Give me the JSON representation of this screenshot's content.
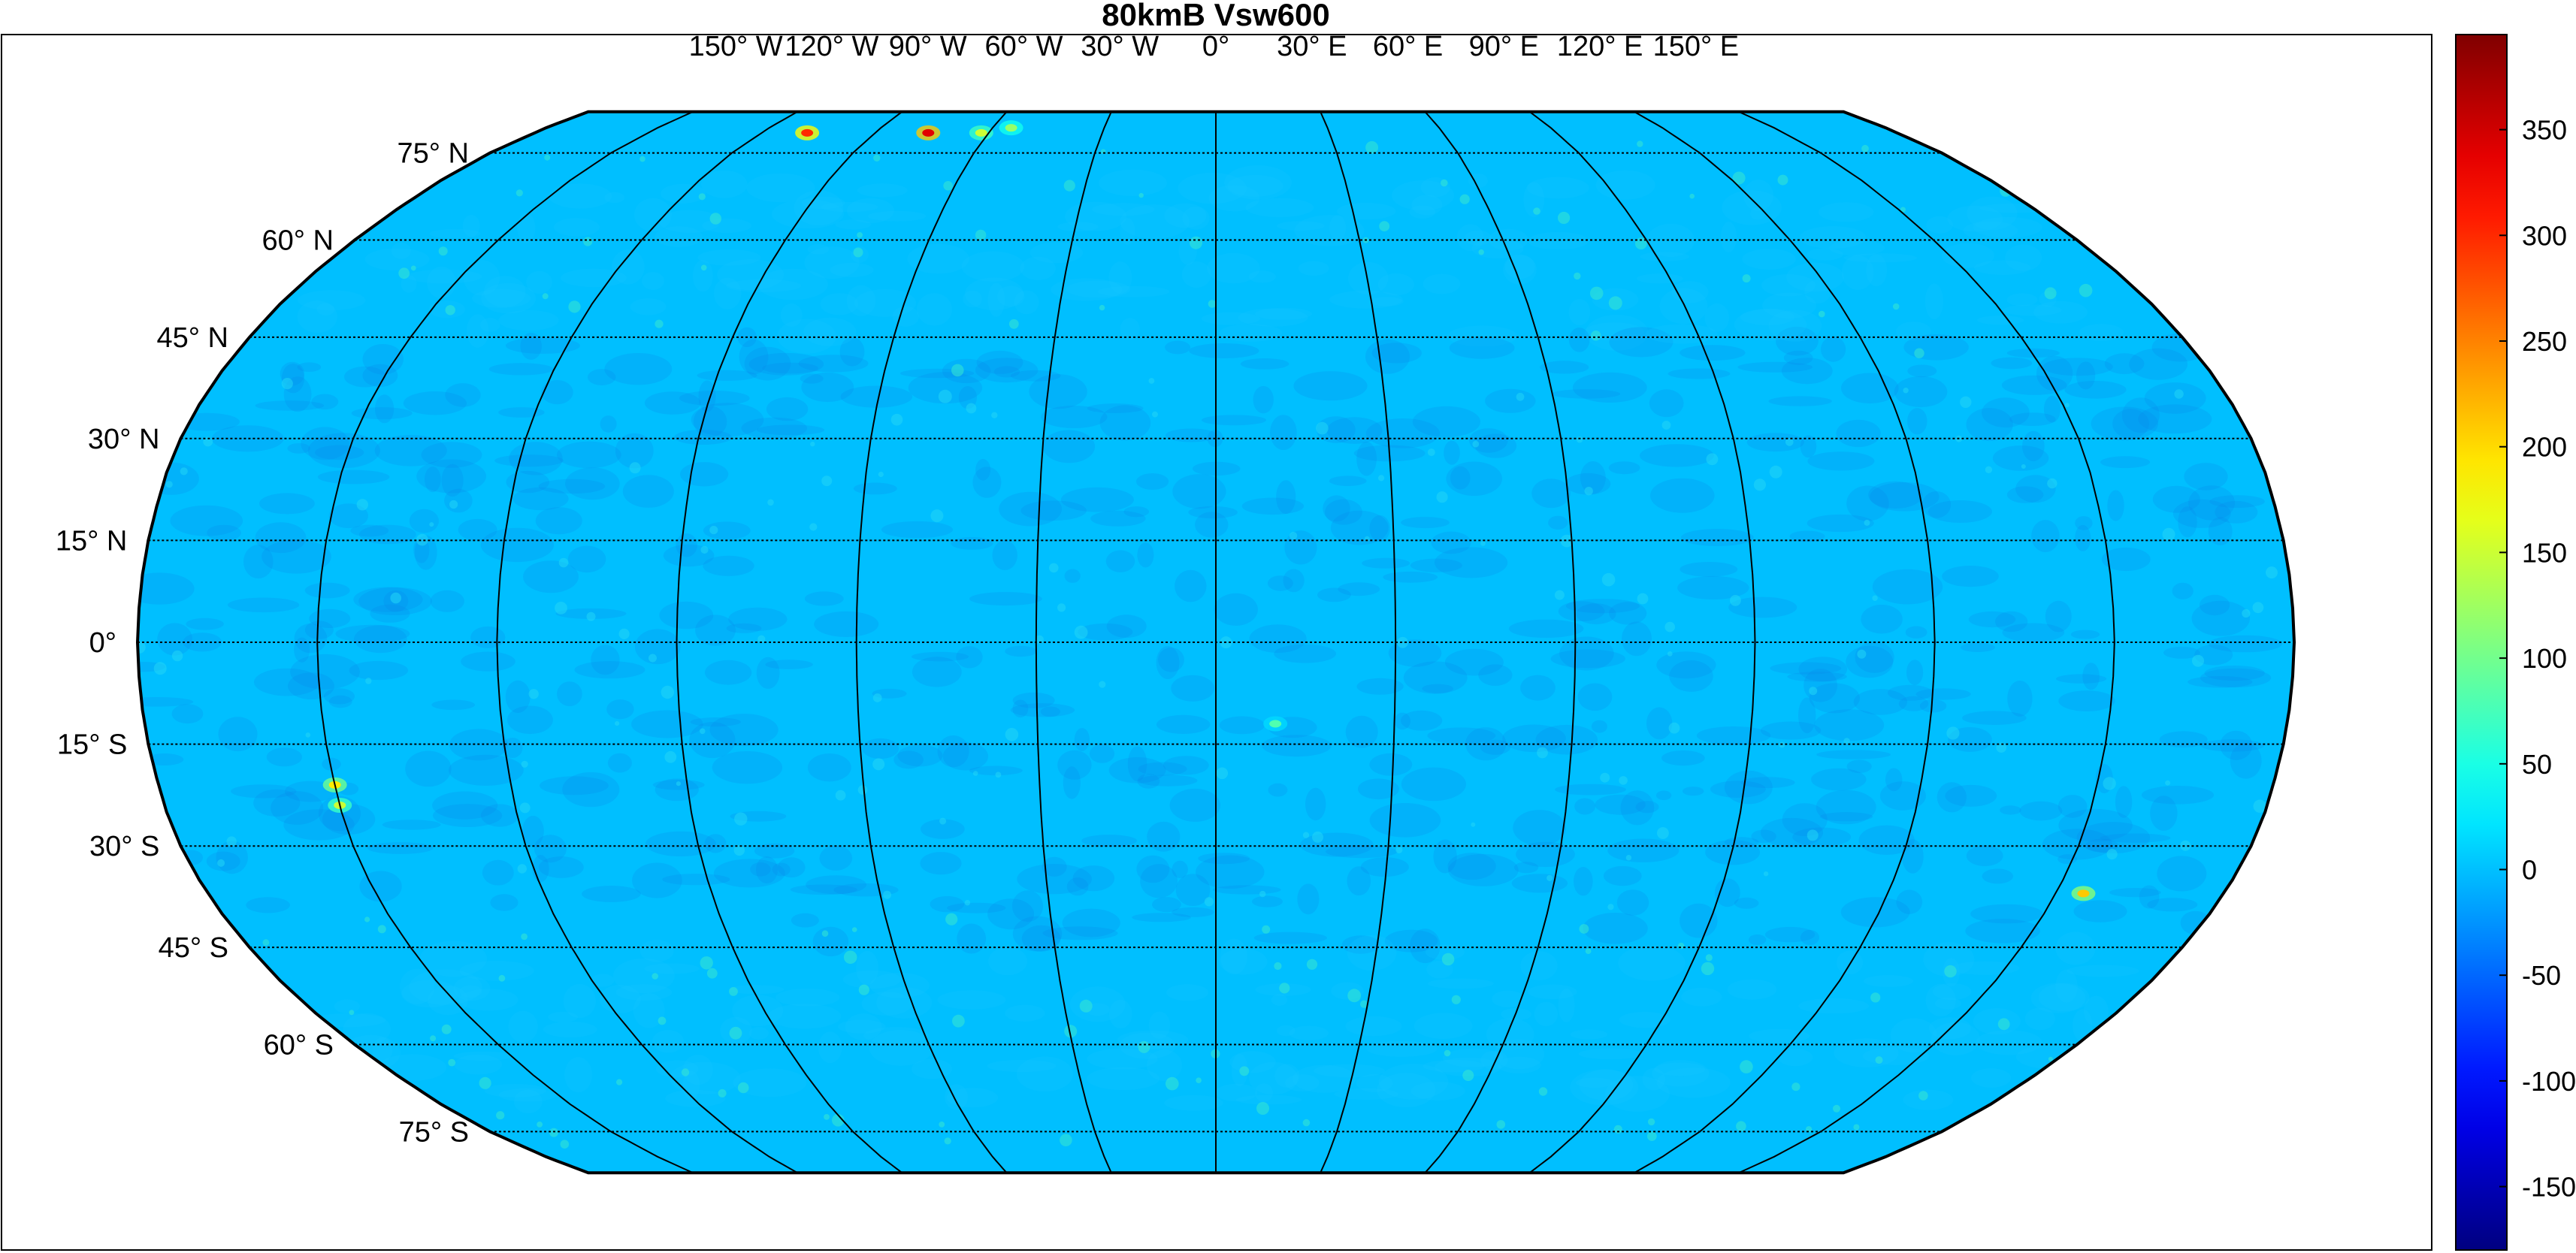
{
  "title": "80kmB Vsw600",
  "projection": "Robinson",
  "background_color": "#00bfff",
  "longitude_labels": [
    {
      "lon": -150,
      "text": "150° W"
    },
    {
      "lon": -120,
      "text": "120° W"
    },
    {
      "lon": -90,
      "text": "90° W"
    },
    {
      "lon": -60,
      "text": "60° W"
    },
    {
      "lon": -30,
      "text": "30° W"
    },
    {
      "lon": 0,
      "text": "0°"
    },
    {
      "lon": 30,
      "text": "30° E"
    },
    {
      "lon": 60,
      "text": "60° E"
    },
    {
      "lon": 90,
      "text": "90° E"
    },
    {
      "lon": 120,
      "text": "120° E"
    },
    {
      "lon": 150,
      "text": "150° E"
    }
  ],
  "latitude_labels": [
    {
      "lat": 75,
      "text": "75° N"
    },
    {
      "lat": 60,
      "text": "60° N"
    },
    {
      "lat": 45,
      "text": "45° N"
    },
    {
      "lat": 30,
      "text": "30° N"
    },
    {
      "lat": 15,
      "text": "15° N"
    },
    {
      "lat": 0,
      "text": "0°"
    },
    {
      "lat": -15,
      "text": "15° S"
    },
    {
      "lat": -30,
      "text": "30° S"
    },
    {
      "lat": -45,
      "text": "45° S"
    },
    {
      "lat": -60,
      "text": "60° S"
    },
    {
      "lat": -75,
      "text": "75° S"
    }
  ],
  "colorbar": {
    "colormap": "jet",
    "min": -180,
    "max": 395,
    "ticks": [
      350,
      300,
      250,
      200,
      150,
      100,
      50,
      0,
      -50,
      -100,
      -150
    ],
    "tick_labels": [
      "350",
      "300",
      "250",
      "200",
      "150",
      "100",
      "50",
      "0",
      "-50",
      "-100",
      "-150"
    ]
  },
  "hotspots": [
    {
      "lon": -108,
      "lat": 79,
      "value": 300
    },
    {
      "lon": -76,
      "lat": 79,
      "value": 340
    },
    {
      "lon": -62,
      "lat": 79,
      "value": 150
    },
    {
      "lon": -55,
      "lat": 80,
      "value": 120
    },
    {
      "lon": -150,
      "lat": -21,
      "value": 190
    },
    {
      "lon": -150,
      "lat": -24,
      "value": 150
    },
    {
      "lon": 155,
      "lat": -37,
      "value": 210
    },
    {
      "lon": 10,
      "lat": -12,
      "value": 80
    }
  ]
}
